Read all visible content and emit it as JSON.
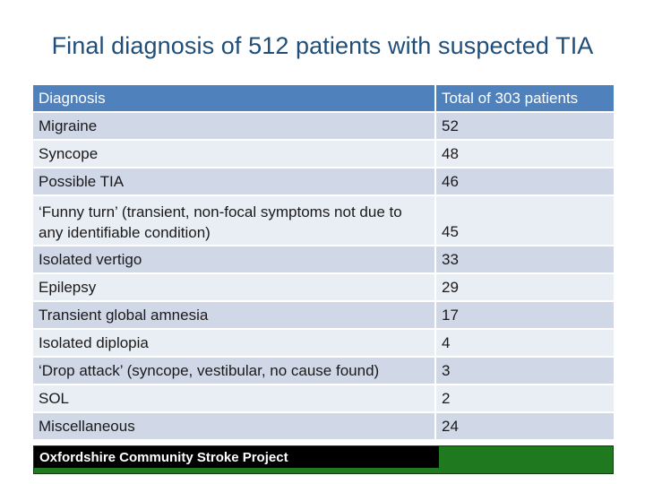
{
  "title": "Final diagnosis of 512 patients with suspected TIA",
  "table": {
    "headers": [
      "Diagnosis",
      "Total of 303 patients"
    ],
    "rows": [
      [
        "Migraine",
        "52"
      ],
      [
        "Syncope",
        "48"
      ],
      [
        "Possible TIA",
        "46"
      ],
      [
        "‘Funny turn’ (transient, non-focal symptoms not due to any identifiable condition)",
        "45"
      ],
      [
        "Isolated vertigo",
        "33"
      ],
      [
        "Epilepsy",
        "29"
      ],
      [
        "Transient global amnesia",
        "17"
      ],
      [
        "Isolated diplopia",
        "4"
      ],
      [
        "‘Drop attack’ (syncope, vestibular, no cause found)",
        "3"
      ],
      [
        "SOL",
        "2"
      ],
      [
        "Miscellaneous",
        "24"
      ]
    ]
  },
  "footer": "Oxfordshire Community Stroke Project",
  "colors": {
    "title": "#1f4e79",
    "header_bg": "#4f81bd",
    "row_dark": "#d0d8e8",
    "row_light": "#e9edf4",
    "footer_bg": "#1f7a1f"
  }
}
